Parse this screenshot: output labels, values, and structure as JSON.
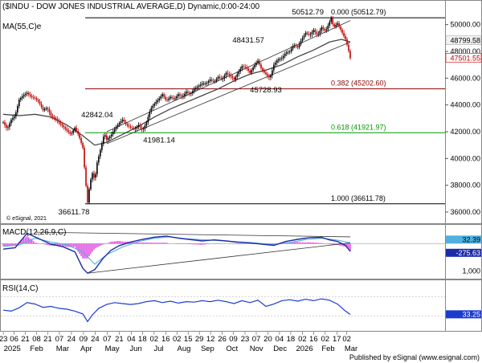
{
  "chart_data": [
    {
      "type": "candlestick",
      "title": "($INDU - DOW JONES INDUSTRIAL AVERAGE,D) Dynamic,0:00-24:00",
      "overlay_label": "MA(55,C)e",
      "watermark": "© eSignal, 2021",
      "y_ticks": [
        "50000.00",
        "48000.00",
        "46000.00",
        "44000.00",
        "42000.00",
        "40000.00",
        "38000.00",
        "36000.00"
      ],
      "ylim": [
        35400,
        51000
      ],
      "last_price_label": "48799.58",
      "last_price_label_2": "47501.55",
      "price_path": [
        [
          0,
          42700
        ],
        [
          5,
          42200
        ],
        [
          10,
          42900
        ],
        [
          15,
          43200
        ],
        [
          20,
          44400
        ],
        [
          25,
          44700
        ],
        [
          30,
          44900
        ],
        [
          35,
          44600
        ],
        [
          40,
          44500
        ],
        [
          45,
          44200
        ],
        [
          50,
          43600
        ],
        [
          55,
          43800
        ],
        [
          60,
          43200
        ],
        [
          65,
          43000
        ],
        [
          70,
          42700
        ],
        [
          75,
          42400
        ],
        [
          80,
          42100
        ],
        [
          85,
          41800
        ],
        [
          90,
          42300
        ],
        [
          95,
          41700
        ],
        [
          100,
          40800
        ],
        [
          103,
          38600
        ],
        [
          106,
          36700
        ],
        [
          109,
          38200
        ],
        [
          112,
          38900
        ],
        [
          115,
          38400
        ],
        [
          118,
          39700
        ],
        [
          121,
          40400
        ],
        [
          124,
          41100
        ],
        [
          127,
          41900
        ],
        [
          130,
          41400
        ],
        [
          135,
          41700
        ],
        [
          140,
          42200
        ],
        [
          145,
          42600
        ],
        [
          150,
          42900
        ],
        [
          155,
          42500
        ],
        [
          160,
          42300
        ],
        [
          165,
          42200
        ],
        [
          170,
          42500
        ],
        [
          175,
          42100
        ],
        [
          180,
          42700
        ],
        [
          185,
          43700
        ],
        [
          190,
          44100
        ],
        [
          195,
          44400
        ],
        [
          200,
          44800
        ],
        [
          205,
          44300
        ],
        [
          210,
          44600
        ],
        [
          215,
          44400
        ],
        [
          220,
          44800
        ],
        [
          225,
          44600
        ],
        [
          230,
          45000
        ],
        [
          235,
          44800
        ],
        [
          240,
          45200
        ],
        [
          245,
          45400
        ],
        [
          250,
          45600
        ],
        [
          255,
          45600
        ],
        [
          260,
          45900
        ],
        [
          265,
          45700
        ],
        [
          270,
          46100
        ],
        [
          275,
          45900
        ],
        [
          280,
          46400
        ],
        [
          285,
          46200
        ],
        [
          290,
          45900
        ],
        [
          295,
          46400
        ],
        [
          300,
          46900
        ],
        [
          305,
          46800
        ],
        [
          310,
          46400
        ],
        [
          315,
          46900
        ],
        [
          320,
          47300
        ],
        [
          325,
          46600
        ],
        [
          330,
          46300
        ],
        [
          335,
          46000
        ],
        [
          340,
          47000
        ],
        [
          345,
          47400
        ],
        [
          350,
          47500
        ],
        [
          355,
          47900
        ],
        [
          360,
          48000
        ],
        [
          365,
          48500
        ],
        [
          370,
          48300
        ],
        [
          375,
          48900
        ],
        [
          380,
          49400
        ],
        [
          385,
          49200
        ],
        [
          390,
          49600
        ],
        [
          395,
          49200
        ],
        [
          400,
          49800
        ],
        [
          405,
          49500
        ],
        [
          410,
          50200
        ],
        [
          412,
          50500
        ],
        [
          415,
          49800
        ],
        [
          420,
          50100
        ],
        [
          425,
          49500
        ],
        [
          430,
          48900
        ],
        [
          433,
          48300
        ],
        [
          436,
          47500
        ]
      ],
      "ma55_path": [
        [
          0,
          43300
        ],
        [
          20,
          43200
        ],
        [
          40,
          43300
        ],
        [
          60,
          43100
        ],
        [
          80,
          42500
        ],
        [
          100,
          41700
        ],
        [
          115,
          41000
        ],
        [
          130,
          41200
        ],
        [
          150,
          41800
        ],
        [
          170,
          42400
        ],
        [
          190,
          43100
        ],
        [
          210,
          43700
        ],
        [
          230,
          44200
        ],
        [
          250,
          44700
        ],
        [
          270,
          45200
        ],
        [
          290,
          45800
        ],
        [
          310,
          46300
        ],
        [
          330,
          46600
        ],
        [
          350,
          47000
        ],
        [
          370,
          47600
        ],
        [
          390,
          48100
        ],
        [
          410,
          48700
        ],
        [
          425,
          48900
        ],
        [
          436,
          48700
        ]
      ],
      "fibonacci": [
        {
          "ratio": "0.000",
          "value": 50512.79,
          "label": "0.000 (50512.79)",
          "color": "#000000"
        },
        {
          "ratio": "0.382",
          "value": 45202.6,
          "label": "0.382 (45202.60)",
          "color": "#8b0000"
        },
        {
          "ratio": "0.618",
          "value": 41921.97,
          "label": "0.618 (41921.97)",
          "color": "#009900"
        },
        {
          "ratio": "1.000",
          "value": 36611.78,
          "label": "1.000 (36611.78)",
          "color": "#000000"
        }
      ],
      "annotations": [
        {
          "text": "50512.79",
          "x": 412,
          "y": 50512.79,
          "pos": "above-left"
        },
        {
          "text": "48431.57",
          "x": 330,
          "y": 48431.57,
          "pos": "above-left"
        },
        {
          "text": "45728.93",
          "x": 330,
          "y": 45728.93,
          "pos": "below"
        },
        {
          "text": "42842.04",
          "x": 140,
          "y": 42842.04,
          "pos": "above-left"
        },
        {
          "text": "41981.14",
          "x": 172,
          "y": 41981.14,
          "pos": "below"
        },
        {
          "text": "36611.78",
          "x": 106,
          "y": 36611.78,
          "pos": "below"
        }
      ],
      "channel_lines": [
        {
          "from": [
            130,
            42000
          ],
          "to": [
            436,
            50300
          ]
        },
        {
          "from": [
            130,
            41100
          ],
          "to": [
            436,
            48700
          ]
        }
      ]
    },
    {
      "type": "line",
      "title": "MACD(12,26,9,C)",
      "y_ticks": [
        "1,000"
      ],
      "values_label": [
        "32.39",
        "-275.63"
      ],
      "ylim": [
        -1250,
        600
      ],
      "macd_path": [
        [
          0,
          -200
        ],
        [
          15,
          -150
        ],
        [
          30,
          380
        ],
        [
          45,
          180
        ],
        [
          60,
          -20
        ],
        [
          75,
          -110
        ],
        [
          90,
          -300
        ],
        [
          100,
          -900
        ],
        [
          106,
          -1080
        ],
        [
          115,
          -950
        ],
        [
          125,
          -550
        ],
        [
          135,
          -250
        ],
        [
          145,
          -80
        ],
        [
          160,
          60
        ],
        [
          175,
          160
        ],
        [
          190,
          240
        ],
        [
          205,
          280
        ],
        [
          220,
          200
        ],
        [
          235,
          150
        ],
        [
          250,
          100
        ],
        [
          265,
          140
        ],
        [
          280,
          100
        ],
        [
          295,
          50
        ],
        [
          310,
          30
        ],
        [
          325,
          -20
        ],
        [
          340,
          -60
        ],
        [
          355,
          80
        ],
        [
          370,
          160
        ],
        [
          385,
          220
        ],
        [
          400,
          230
        ],
        [
          410,
          140
        ],
        [
          420,
          80
        ],
        [
          430,
          -60
        ],
        [
          436,
          -280
        ]
      ],
      "signal_path": [
        [
          0,
          -100
        ],
        [
          20,
          -50
        ],
        [
          40,
          200
        ],
        [
          60,
          60
        ],
        [
          80,
          -40
        ],
        [
          100,
          -300
        ],
        [
          115,
          -750
        ],
        [
          130,
          -400
        ],
        [
          150,
          -120
        ],
        [
          170,
          80
        ],
        [
          190,
          200
        ],
        [
          210,
          250
        ],
        [
          230,
          180
        ],
        [
          260,
          130
        ],
        [
          290,
          80
        ],
        [
          320,
          20
        ],
        [
          340,
          -30
        ],
        [
          360,
          40
        ],
        [
          380,
          150
        ],
        [
          400,
          200
        ],
        [
          420,
          130
        ],
        [
          436,
          30
        ]
      ],
      "trendlines": [
        {
          "from": [
            106,
            -1080
          ],
          "to": [
            436,
            30
          ]
        },
        {
          "from": [
            40,
            420
          ],
          "to": [
            436,
            250
          ]
        }
      ]
    },
    {
      "type": "line",
      "title": "RSI(14,C)",
      "value_label": "33.25",
      "ylim": [
        0,
        100
      ],
      "levels": [
        70,
        30
      ],
      "rsi_path": [
        [
          0,
          42
        ],
        [
          10,
          40
        ],
        [
          20,
          47
        ],
        [
          30,
          58
        ],
        [
          40,
          55
        ],
        [
          50,
          48
        ],
        [
          60,
          50
        ],
        [
          70,
          46
        ],
        [
          80,
          44
        ],
        [
          90,
          40
        ],
        [
          100,
          34
        ],
        [
          106,
          18
        ],
        [
          112,
          32
        ],
        [
          120,
          46
        ],
        [
          130,
          54
        ],
        [
          140,
          58
        ],
        [
          150,
          56
        ],
        [
          160,
          54
        ],
        [
          170,
          56
        ],
        [
          180,
          60
        ],
        [
          190,
          62
        ],
        [
          200,
          58
        ],
        [
          210,
          61
        ],
        [
          220,
          57
        ],
        [
          230,
          60
        ],
        [
          240,
          59
        ],
        [
          250,
          62
        ],
        [
          260,
          60
        ],
        [
          270,
          63
        ],
        [
          280,
          60
        ],
        [
          290,
          56
        ],
        [
          300,
          62
        ],
        [
          310,
          58
        ],
        [
          320,
          63
        ],
        [
          330,
          50
        ],
        [
          340,
          55
        ],
        [
          350,
          62
        ],
        [
          360,
          64
        ],
        [
          370,
          61
        ],
        [
          380,
          65
        ],
        [
          390,
          62
        ],
        [
          400,
          66
        ],
        [
          410,
          63
        ],
        [
          420,
          55
        ],
        [
          430,
          40
        ],
        [
          436,
          33
        ]
      ]
    }
  ],
  "x_axis": {
    "day_labels": [
      "23",
      "06",
      "21",
      "08",
      "21",
      "07",
      "24",
      "09",
      "24",
      "07",
      "21",
      "04",
      "18",
      "02",
      "16",
      "02",
      "15",
      "29",
      "12",
      "26",
      "09",
      "23",
      "07",
      "20",
      "04",
      "18",
      "02",
      "16",
      "02",
      "17",
      "02"
    ],
    "month_labels": [
      "2025",
      "Feb",
      "Mar",
      "Apr",
      "May",
      "Jun",
      "Jul",
      "Aug",
      "Sep",
      "Oct",
      "Nov",
      "Dec",
      "2026",
      "Feb",
      "Mar"
    ]
  },
  "footer": "Published by eSignal (www.esignal.com)"
}
